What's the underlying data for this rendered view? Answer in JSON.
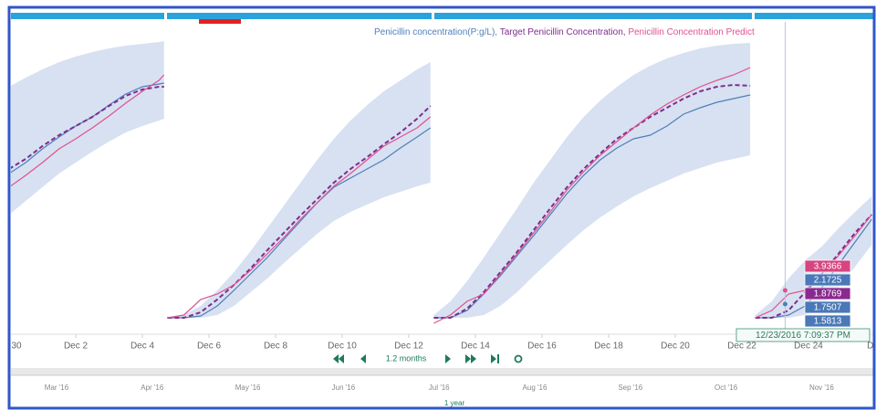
{
  "chart_data": {
    "type": "line",
    "x": [
      0,
      0.5,
      1,
      1.5,
      2,
      2.5,
      3,
      3.5,
      4,
      4.5,
      4.65,
      4.7,
      4.75,
      5.25,
      5.75,
      6.25,
      6.75,
      7.25,
      7.75,
      8.25,
      8.75,
      9.25,
      9.75,
      10.25,
      10.75,
      11.25,
      11.75,
      12.25,
      12.65,
      12.7,
      12.75,
      13.25,
      13.75,
      14.25,
      14.75,
      15.25,
      15.75,
      16.25,
      16.75,
      17.25,
      17.75,
      18.25,
      18.75,
      19.25,
      19.75,
      20.25,
      20.75,
      21.25,
      21.75,
      22.25,
      22.35,
      22.4,
      22.9,
      23.4,
      23.9,
      24.4,
      24.9,
      25.4,
      25.9
    ],
    "xlim": [
      0,
      26
    ],
    "xticks": [
      {
        "value": 0,
        "label": "30"
      },
      {
        "value": 2,
        "label": "Dec 2"
      },
      {
        "value": 4,
        "label": "Dec 4"
      },
      {
        "value": 6,
        "label": "Dec 6"
      },
      {
        "value": 8,
        "label": "Dec 8"
      },
      {
        "value": 10,
        "label": "Dec 10"
      },
      {
        "value": 12,
        "label": "Dec 12"
      },
      {
        "value": 14,
        "label": "Dec 14"
      },
      {
        "value": 16,
        "label": "Dec 16"
      },
      {
        "value": 18,
        "label": "Dec 18"
      },
      {
        "value": 20,
        "label": "Dec 20"
      },
      {
        "value": 22,
        "label": "Dec 22"
      },
      {
        "value": 24,
        "label": "Dec 24"
      },
      {
        "value": 26,
        "label": "Dec"
      }
    ],
    "ylim": [
      -1,
      31
    ],
    "legend_separator": ",",
    "band": {
      "color": "#d7e1f1",
      "upper": [
        25.5,
        26.5,
        27.4,
        28.2,
        28.8,
        29.3,
        29.7,
        30,
        30.2,
        30.4,
        30.5,
        null,
        0.2,
        0.5,
        1.5,
        3.2,
        5.2,
        7.5,
        10,
        12.5,
        15,
        17.5,
        19.8,
        21.8,
        23.5,
        25,
        26.2,
        27.4,
        28.2,
        null,
        0.5,
        2,
        4.2,
        6.8,
        9.5,
        12.2,
        15,
        17.5,
        20,
        22.2,
        24,
        25.5,
        26.8,
        27.8,
        28.6,
        29.2,
        29.7,
        30,
        30.2,
        30.3,
        null,
        0.5,
        2,
        4.5,
        6.5,
        8,
        10,
        11.8,
        13.5
      ],
      "lower": [
        11.5,
        13,
        14.5,
        16,
        17.2,
        18.4,
        19.5,
        20.5,
        21.2,
        21.8,
        22,
        null,
        0.2,
        0.2,
        0.2,
        0.5,
        1.5,
        3,
        4.5,
        6.2,
        7.8,
        9.4,
        10.8,
        11.8,
        12.6,
        13.4,
        14,
        14.6,
        15,
        null,
        0.2,
        0.2,
        0.2,
        0.5,
        1.5,
        3,
        4.8,
        6.5,
        8.2,
        9.8,
        11.2,
        12.4,
        13.5,
        14.4,
        15.2,
        16,
        16.6,
        17.2,
        17.6,
        18,
        null,
        0.2,
        0.2,
        0.2,
        0.5,
        1.5,
        3.5,
        5.8,
        8.2
      ]
    },
    "series": [
      {
        "name": "Penicillin concentration(P:g/L)",
        "color": "#4f7fb9",
        "dashed": false,
        "values": [
          16,
          17.2,
          18.7,
          20,
          21.2,
          22.2,
          23.5,
          24.7,
          25.5,
          25.8,
          25.9,
          null,
          0.2,
          0.2,
          0.4,
          1.5,
          3.2,
          5,
          6.8,
          8.8,
          10.8,
          12.8,
          14.5,
          15.5,
          16.5,
          17.5,
          18.8,
          20,
          21,
          null,
          0.2,
          0.2,
          1,
          2.8,
          4.8,
          7,
          9.2,
          11.5,
          13.8,
          15.8,
          17.5,
          18.8,
          19.8,
          20.2,
          21.2,
          22.5,
          23.2,
          23.8,
          24.2,
          24.6,
          null,
          0.2,
          0.2,
          0.5,
          1.5,
          3.5,
          6,
          8.5,
          11
        ]
      },
      {
        "name": "Target Penicillin Concentration",
        "color": "#7e2d8e",
        "dashed": true,
        "values": [
          16.5,
          17.6,
          19,
          20.2,
          21.2,
          22.2,
          23.4,
          24.5,
          25.2,
          25.5,
          25.5,
          null,
          0.2,
          0.2,
          0.8,
          2.2,
          3.8,
          5.6,
          7.6,
          9.5,
          11.4,
          13.2,
          15,
          16.5,
          17.8,
          19.2,
          20.5,
          22,
          23.4,
          null,
          0.2,
          0.2,
          1.2,
          3,
          5.2,
          7.4,
          9.8,
          12.2,
          14.5,
          16.5,
          18.2,
          19.8,
          21,
          22.2,
          23.2,
          24.2,
          25,
          25.5,
          25.7,
          25.6,
          null,
          0.2,
          0.2,
          1,
          3,
          5,
          7.2,
          9.5,
          11.5
        ]
      },
      {
        "name": "Penicillin Concentration Predict",
        "color": "#e0508f",
        "dashed": false,
        "values": [
          14.5,
          15.8,
          17.2,
          18.7,
          19.8,
          21,
          22.3,
          23.7,
          25,
          26.2,
          26.8,
          null,
          0.2,
          0.5,
          2.2,
          2.8,
          3.8,
          5.4,
          7.2,
          9,
          11,
          12.8,
          14.6,
          16,
          17.5,
          19,
          20,
          21,
          22.2,
          null,
          -0.4,
          0.5,
          2,
          2.8,
          5,
          7.2,
          9.5,
          11.8,
          14.2,
          16.2,
          18,
          19.5,
          21,
          22.4,
          23.6,
          24.6,
          25.5,
          26.2,
          26.8,
          27.6,
          null,
          0.2,
          1,
          2.8,
          3.2,
          5,
          7,
          9.2,
          11.5
        ]
      }
    ],
    "cursor_x": 23.3,
    "tooltip": {
      "date": "12/23/2016 7:09:37 PM",
      "values": [
        3.9366,
        2.1725,
        1.8769,
        1.7507,
        1.5813
      ],
      "colors": [
        "#d6457f",
        "#4a78b8",
        "#8a2a8f",
        "#4a78b8",
        "#4a78b8"
      ]
    }
  },
  "navigator": {
    "zoom": "1.2 months",
    "range": "1 year",
    "labels": [
      "Mar '16",
      "Apr '16",
      "May '16",
      "Jun '16",
      "Jul '16",
      "Aug '16",
      "Sep '16",
      "Oct '16",
      "Nov '16"
    ]
  }
}
